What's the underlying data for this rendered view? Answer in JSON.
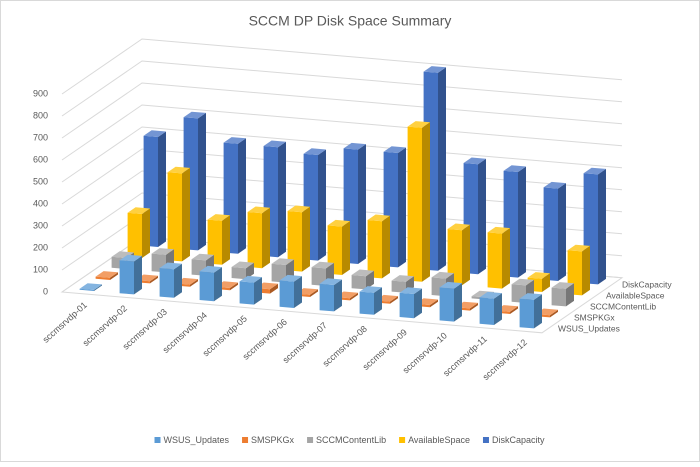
{
  "chart_data": {
    "type": "bar3d",
    "title": "SCCM DP Disk Space Summary",
    "categories": [
      "sccmsrvdp-01",
      "sccmsrvdp-02",
      "sccmsrvdp-03",
      "sccmsrvdp-04",
      "sccmsrvdp-05",
      "sccmsrvdp-06",
      "sccmsrvdp-07",
      "sccmsrvdp-08",
      "sccmsrvdp-09",
      "sccmsrvdp-10",
      "sccmsrvdp-11",
      "sccmsrvdp-12"
    ],
    "series": [
      {
        "name": "WSUS_Updates",
        "color": "#5b9bd5",
        "values": [
          5,
          150,
          130,
          130,
          100,
          120,
          120,
          100,
          110,
          150,
          120,
          130
        ]
      },
      {
        "name": "SMSPKGx",
        "color": "#ed7d31",
        "values": [
          10,
          10,
          10,
          10,
          20,
          10,
          10,
          10,
          10,
          10,
          10,
          10
        ]
      },
      {
        "name": "SCCMContentLib",
        "color": "#a5a5a5",
        "values": [
          50,
          80,
          70,
          50,
          80,
          80,
          60,
          50,
          80,
          10,
          80,
          80
        ]
      },
      {
        "name": "AvailableSpace",
        "color": "#ffc000",
        "values": [
          200,
          400,
          200,
          250,
          270,
          220,
          260,
          700,
          250,
          250,
          60,
          200
        ]
      },
      {
        "name": "DiskCapacity",
        "color": "#4472c4",
        "values": [
          500,
          600,
          500,
          500,
          480,
          520,
          520,
          900,
          500,
          480,
          420,
          500
        ]
      }
    ],
    "ylim": [
      0,
      900
    ],
    "yticks": [
      0,
      100,
      200,
      300,
      400,
      500,
      600,
      700,
      800,
      900
    ],
    "grid": true,
    "legend": "bottom"
  }
}
